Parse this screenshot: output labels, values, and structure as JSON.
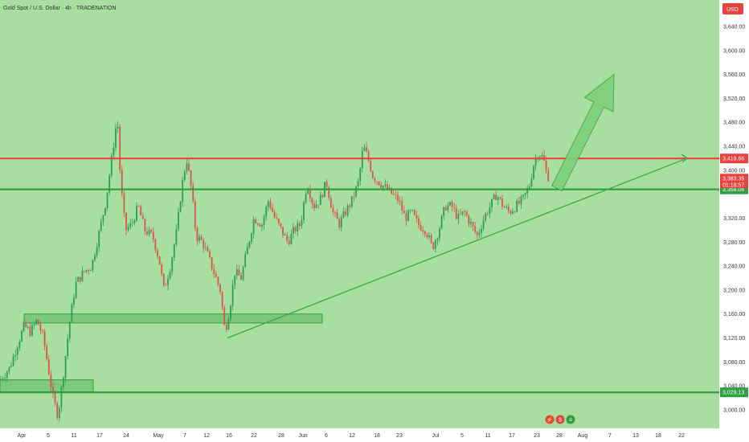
{
  "header": {
    "title": "Gold Spot / U.S. Dollar · 4h · TRADENATION",
    "currency": "USD"
  },
  "colors": {
    "background": "#a8dfa0",
    "axis_bg": "#ffffff",
    "up": "#2e9c55",
    "down": "#d9534f",
    "resistance": "#e8423e",
    "support": "#2f9e44",
    "trendline": "#3fa64b",
    "zone_fill": "#7cc97a",
    "arrow_fill": "#7fd07a"
  },
  "chart_data": {
    "type": "candlestick",
    "ylim": [
      2975,
      3680
    ],
    "x_labels": [
      "Apr",
      "5",
      "11",
      "17",
      "24",
      "May",
      "7",
      "12",
      "16",
      "22",
      "28",
      "Jun",
      "6",
      "12",
      "18",
      "23",
      "Jul",
      "5",
      "11",
      "17",
      "23",
      "28",
      "Aug",
      "7",
      "13",
      "18",
      "22"
    ],
    "y_ticks": [
      "3,640.00",
      "3,600.00",
      "3,560.00",
      "3,520.00",
      "3,480.00",
      "3,440.00",
      "3,400.00",
      "3,320.00",
      "3,280.00",
      "3,240.00",
      "3,200.00",
      "3,160.00",
      "3,120.00",
      "3,080.00",
      "3,040.00",
      "3,000.00"
    ],
    "price_path": [
      [
        0,
        3050
      ],
      [
        12,
        3070
      ],
      [
        22,
        3110
      ],
      [
        30,
        3140
      ],
      [
        38,
        3130
      ],
      [
        46,
        3150
      ],
      [
        54,
        3120
      ],
      [
        60,
        3070
      ],
      [
        66,
        3020
      ],
      [
        72,
        2990
      ],
      [
        78,
        3050
      ],
      [
        86,
        3140
      ],
      [
        94,
        3210
      ],
      [
        104,
        3230
      ],
      [
        114,
        3240
      ],
      [
        124,
        3300
      ],
      [
        132,
        3350
      ],
      [
        140,
        3430
      ],
      [
        146,
        3490
      ],
      [
        150,
        3380
      ],
      [
        156,
        3300
      ],
      [
        164,
        3310
      ],
      [
        172,
        3340
      ],
      [
        180,
        3300
      ],
      [
        190,
        3290
      ],
      [
        198,
        3250
      ],
      [
        204,
        3200
      ],
      [
        212,
        3240
      ],
      [
        220,
        3300
      ],
      [
        226,
        3370
      ],
      [
        232,
        3420
      ],
      [
        238,
        3370
      ],
      [
        244,
        3290
      ],
      [
        252,
        3280
      ],
      [
        258,
        3260
      ],
      [
        266,
        3230
      ],
      [
        274,
        3200
      ],
      [
        280,
        3130
      ],
      [
        286,
        3170
      ],
      [
        292,
        3230
      ],
      [
        300,
        3220
      ],
      [
        308,
        3270
      ],
      [
        316,
        3320
      ],
      [
        326,
        3310
      ],
      [
        334,
        3350
      ],
      [
        342,
        3320
      ],
      [
        350,
        3300
      ],
      [
        358,
        3280
      ],
      [
        366,
        3300
      ],
      [
        374,
        3310
      ],
      [
        382,
        3380
      ],
      [
        390,
        3340
      ],
      [
        398,
        3350
      ],
      [
        406,
        3380
      ],
      [
        414,
        3330
      ],
      [
        422,
        3310
      ],
      [
        430,
        3330
      ],
      [
        438,
        3350
      ],
      [
        446,
        3380
      ],
      [
        452,
        3440
      ],
      [
        458,
        3420
      ],
      [
        464,
        3390
      ],
      [
        472,
        3380
      ],
      [
        480,
        3370
      ],
      [
        488,
        3360
      ],
      [
        496,
        3350
      ],
      [
        504,
        3320
      ],
      [
        512,
        3330
      ],
      [
        520,
        3310
      ],
      [
        530,
        3300
      ],
      [
        538,
        3270
      ],
      [
        546,
        3300
      ],
      [
        554,
        3340
      ],
      [
        562,
        3340
      ],
      [
        570,
        3320
      ],
      [
        578,
        3330
      ],
      [
        586,
        3310
      ],
      [
        594,
        3290
      ],
      [
        602,
        3320
      ],
      [
        610,
        3340
      ],
      [
        618,
        3360
      ],
      [
        626,
        3340
      ],
      [
        634,
        3330
      ],
      [
        642,
        3340
      ],
      [
        650,
        3350
      ],
      [
        658,
        3370
      ],
      [
        664,
        3410
      ],
      [
        670,
        3430
      ],
      [
        676,
        3420
      ],
      [
        680,
        3395
      ],
      [
        684,
        3385
      ]
    ],
    "levels": [
      {
        "name": "resistance",
        "price": 3419.66,
        "label": "3,419.66"
      },
      {
        "name": "support",
        "price": 3368.06,
        "label": "3,368.06"
      },
      {
        "name": "low-support",
        "price": 3029.13,
        "label": "3,029.13"
      }
    ],
    "current_price": {
      "price": 3383.35,
      "label": "3,383.35",
      "countdown": "01:18:57"
    },
    "zones": [
      {
        "x0": 30,
        "x1": 401,
        "top": 3160,
        "bottom": 3145
      },
      {
        "x0": 0,
        "x1": 116,
        "top": 3050,
        "bottom": 3030
      }
    ],
    "trendline": {
      "from": [
        283,
        3120
      ],
      "to": [
        855,
        3420
      ]
    },
    "arrow": {
      "from": [
        693,
        3370
      ],
      "to": [
        764,
        3560
      ]
    },
    "markers": [
      "⚡",
      "$",
      "≡"
    ]
  }
}
